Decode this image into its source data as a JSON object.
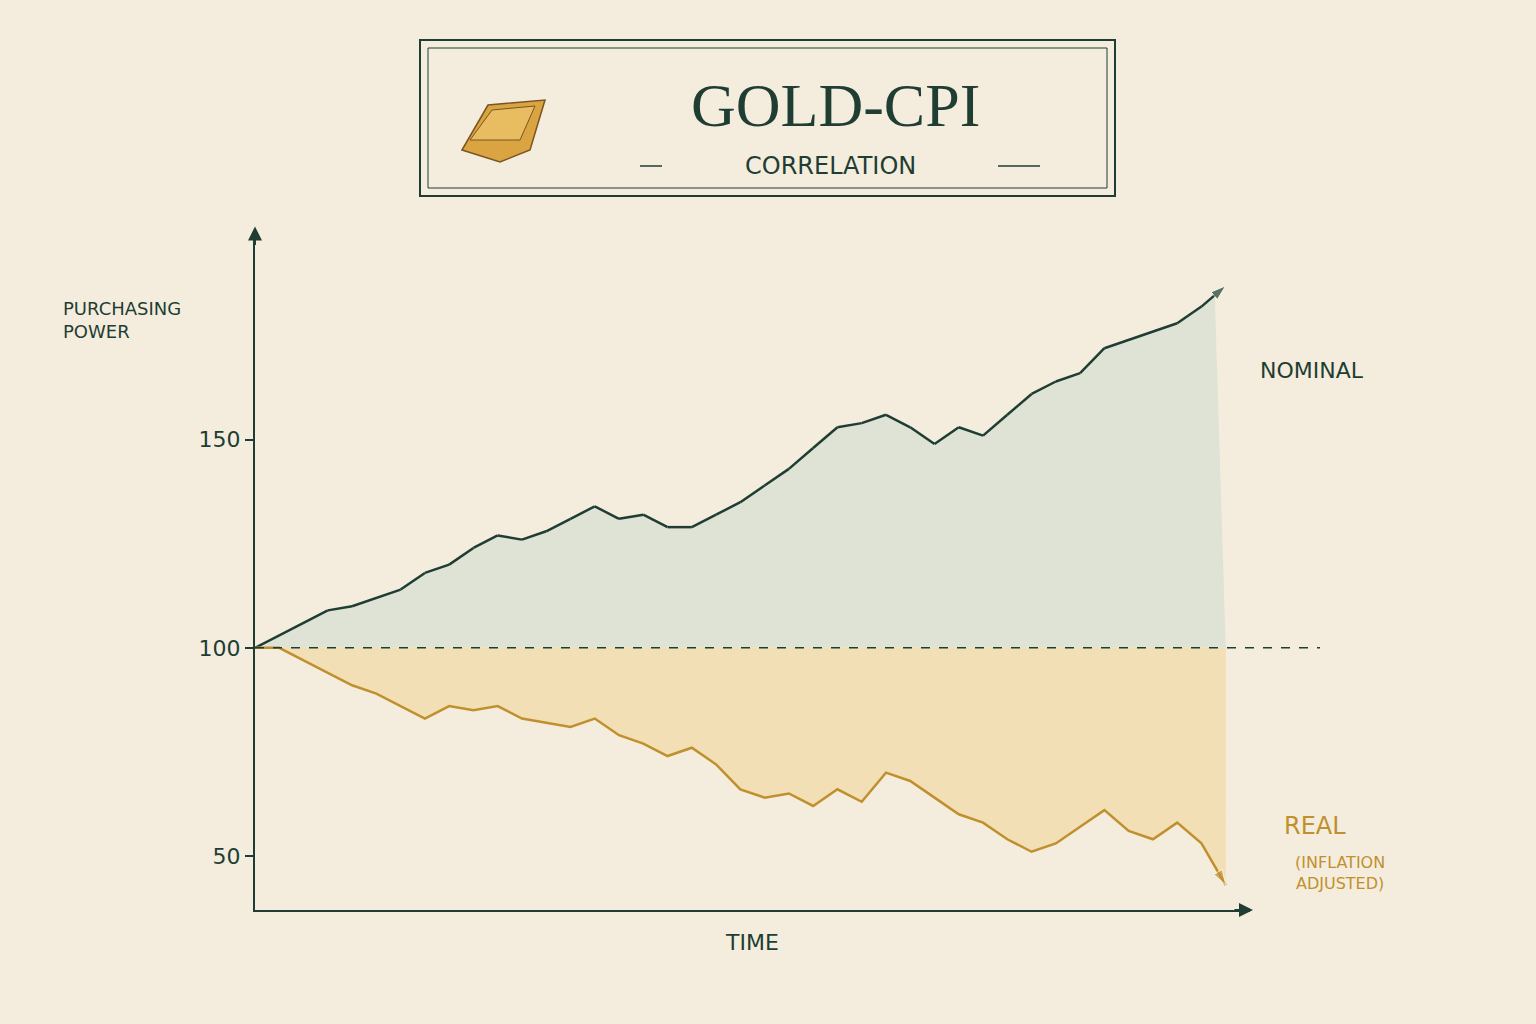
{
  "chart_data": {
    "type": "line",
    "title": "GOLD-CPI",
    "subtitle": "CORRELATION",
    "y_label": "PURCHASING POWER",
    "x_label": "TIME",
    "x": [
      0,
      1,
      2,
      3,
      4,
      5,
      6,
      7,
      8,
      9,
      10,
      11,
      12,
      13,
      14,
      15,
      16,
      17,
      18,
      19,
      20,
      21,
      22,
      23,
      24,
      25,
      26,
      27,
      28,
      29,
      30,
      31,
      32,
      33,
      34,
      35,
      36,
      37,
      38,
      39,
      40
    ],
    "baseline": 100,
    "series": [
      {
        "name": "NOMINAL",
        "color": "#1f3d33",
        "fill_color": "#dfe3d6",
        "marker": "arrow",
        "values": [
          100,
          103,
          106,
          109,
          110,
          112,
          114,
          118,
          120,
          124,
          127,
          126,
          128,
          131,
          134,
          131,
          132,
          129,
          129,
          132,
          135,
          139,
          143,
          148,
          153,
          154,
          156,
          153,
          149,
          153,
          151,
          156,
          161,
          164,
          166,
          172,
          174,
          176,
          178,
          182,
          187
        ]
      },
      {
        "name": "REAL",
        "name_note": "(INFLATION ADJUSTED)",
        "color": "#c0902e",
        "fill_color": "#f3dfb5",
        "marker": "arrow",
        "values": [
          100,
          100,
          97,
          94,
          91,
          89,
          86,
          83,
          86,
          85,
          86,
          83,
          82,
          81,
          83,
          79,
          77,
          74,
          76,
          72,
          66,
          64,
          65,
          62,
          66,
          63,
          70,
          68,
          64,
          60,
          58,
          54,
          51,
          53,
          57,
          61,
          56,
          54,
          58,
          53,
          43
        ]
      }
    ],
    "xlim": [
      0,
      41
    ],
    "ylim": [
      37,
      198
    ],
    "yticks": [
      50,
      100,
      150
    ],
    "tick_labels": "y",
    "grid": false
  }
}
